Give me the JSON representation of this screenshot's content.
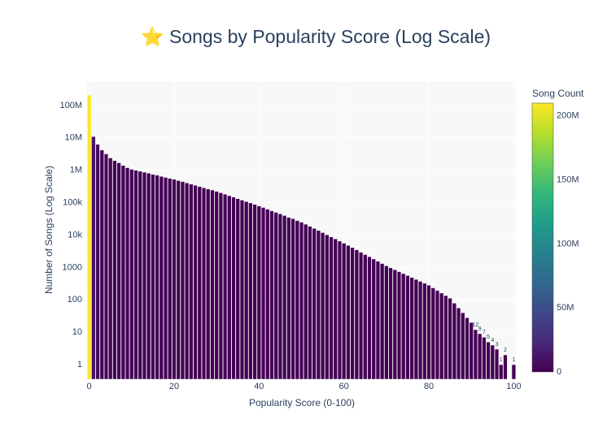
{
  "chart_data": {
    "type": "bar",
    "title": "⭐ Songs by Popularity Score (Log Scale)",
    "x_label": "Popularity Score (0-100)",
    "y_label": "Number of Songs (Log Scale)",
    "colorbar_title": "Song Count",
    "log_y": true,
    "grid": true,
    "x": [
      0,
      1,
      2,
      3,
      4,
      5,
      6,
      7,
      8,
      9,
      10,
      11,
      12,
      13,
      14,
      15,
      16,
      17,
      18,
      19,
      20,
      21,
      22,
      23,
      24,
      25,
      26,
      27,
      28,
      29,
      30,
      31,
      32,
      33,
      34,
      35,
      36,
      37,
      38,
      39,
      40,
      41,
      42,
      43,
      44,
      45,
      46,
      47,
      48,
      49,
      50,
      51,
      52,
      53,
      54,
      55,
      56,
      57,
      58,
      59,
      60,
      61,
      62,
      63,
      64,
      65,
      66,
      67,
      68,
      69,
      70,
      71,
      72,
      73,
      74,
      75,
      76,
      77,
      78,
      79,
      80,
      81,
      82,
      83,
      84,
      85,
      86,
      87,
      88,
      89,
      90,
      91,
      92,
      93,
      94,
      95,
      96,
      97,
      98,
      99,
      100
    ],
    "values": [
      210000000,
      11000000,
      6300000,
      4200000,
      3200000,
      2400000,
      2000000,
      1700000,
      1400000,
      1200000,
      1070000,
      1000000,
      933000,
      871000,
      813000,
      750000,
      708000,
      646000,
      603000,
      562000,
      525000,
      479000,
      447000,
      407000,
      372000,
      343000,
      316000,
      288000,
      263000,
      245000,
      224000,
      202000,
      182000,
      164000,
      148000,
      133000,
      120000,
      108000,
      98000,
      88000,
      79000,
      71000,
      63000,
      56000,
      50000,
      45000,
      40000,
      35000,
      32000,
      28000,
      25000,
      21600,
      18600,
      16000,
      13800,
      11900,
      10200,
      8800,
      7600,
      6500,
      5600,
      4800,
      4100,
      3500,
      2950,
      2500,
      2140,
      1820,
      1550,
      1320,
      1120,
      977,
      851,
      741,
      646,
      562,
      490,
      427,
      372,
      324,
      282,
      234,
      195,
      162,
      135,
      112,
      79,
      56,
      40,
      28,
      20,
      12,
      9,
      7,
      5,
      4,
      3,
      1,
      2,
      null,
      1
    ],
    "xlim": [
      -0.5,
      100.5
    ],
    "xticks": [
      0,
      20,
      40,
      60,
      80,
      100
    ],
    "ylim": [
      0.355,
      562000000
    ],
    "yticks": [
      1,
      10,
      100,
      1000,
      {
        "value": 10000,
        "label": "10k"
      },
      {
        "value": 100000,
        "label": "100k"
      },
      {
        "value": 1000000,
        "label": "1M"
      },
      {
        "value": 10000000,
        "label": "10M"
      },
      {
        "value": 100000000,
        "label": "100M"
      }
    ],
    "clim": [
      0,
      210000000
    ],
    "cticks": [
      0,
      {
        "value": 50000000,
        "label": "50M"
      },
      {
        "value": 100000000,
        "label": "100M"
      },
      {
        "value": 150000000,
        "label": "150M"
      },
      {
        "value": 200000000,
        "label": "200M"
      }
    ],
    "colorscale": [
      [
        0,
        "#440154"
      ],
      [
        0.111,
        "#482878"
      ],
      [
        0.222,
        "#3e4989"
      ],
      [
        0.333,
        "#31688e"
      ],
      [
        0.444,
        "#26828e"
      ],
      [
        0.556,
        "#1f9e89"
      ],
      [
        0.667,
        "#35b779"
      ],
      [
        0.778,
        "#6ece58"
      ],
      [
        0.889,
        "#b5de2b"
      ],
      [
        1,
        "#fde725"
      ]
    ]
  }
}
